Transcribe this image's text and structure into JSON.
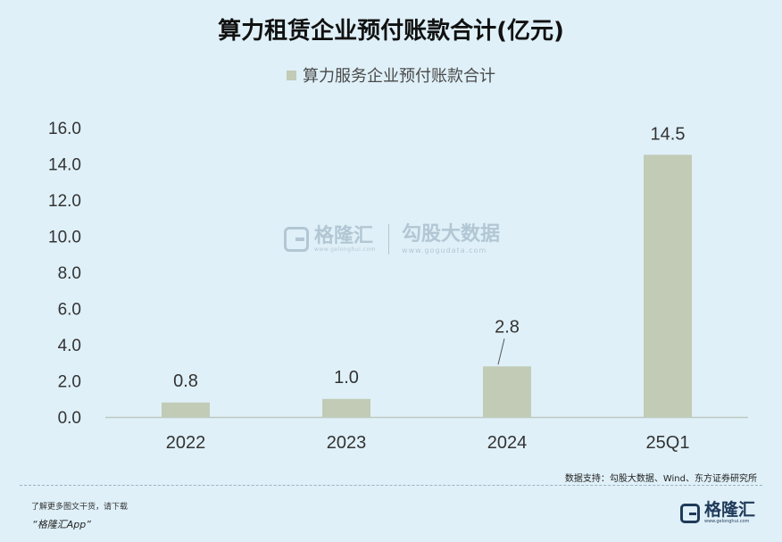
{
  "title": "算力租赁企业预付账款合计(亿元)",
  "legend_label": "算力服务企业预付账款合计",
  "watermark": {
    "brand": "格隆汇",
    "brand_url": "www.gelonghui.com",
    "partner": "勾股大数据",
    "partner_url": "www.gogudata.com"
  },
  "source": "数据支持：勾股大数据、Wind、东方证券研究所",
  "promo": {
    "line1": "了解更多图文干货，请下载",
    "line2": "“格隆汇App”"
  },
  "footer_logo": {
    "brand": "格隆汇",
    "url": "www.gelonghui.com"
  },
  "colors": {
    "bar": "#c1cbb6",
    "background": "#dff0f8",
    "axis": "#bfc9c2"
  },
  "chart_data": {
    "type": "bar",
    "categories": [
      "2022",
      "2023",
      "2024",
      "25Q1"
    ],
    "series": [
      {
        "name": "算力服务企业预付账款合计",
        "values": [
          0.8,
          1.0,
          2.8,
          14.5
        ]
      }
    ],
    "data_labels": [
      "0.8",
      "1.0",
      "2.8",
      "14.5"
    ],
    "title": "算力租赁企业预付账款合计(亿元)",
    "xlabel": "",
    "ylabel": "",
    "ylim": [
      0,
      16
    ],
    "yticks": [
      "0.0",
      "2.0",
      "4.0",
      "6.0",
      "8.0",
      "10.0",
      "12.0",
      "14.0",
      "16.0"
    ],
    "grid": false,
    "legend": "top-center"
  }
}
